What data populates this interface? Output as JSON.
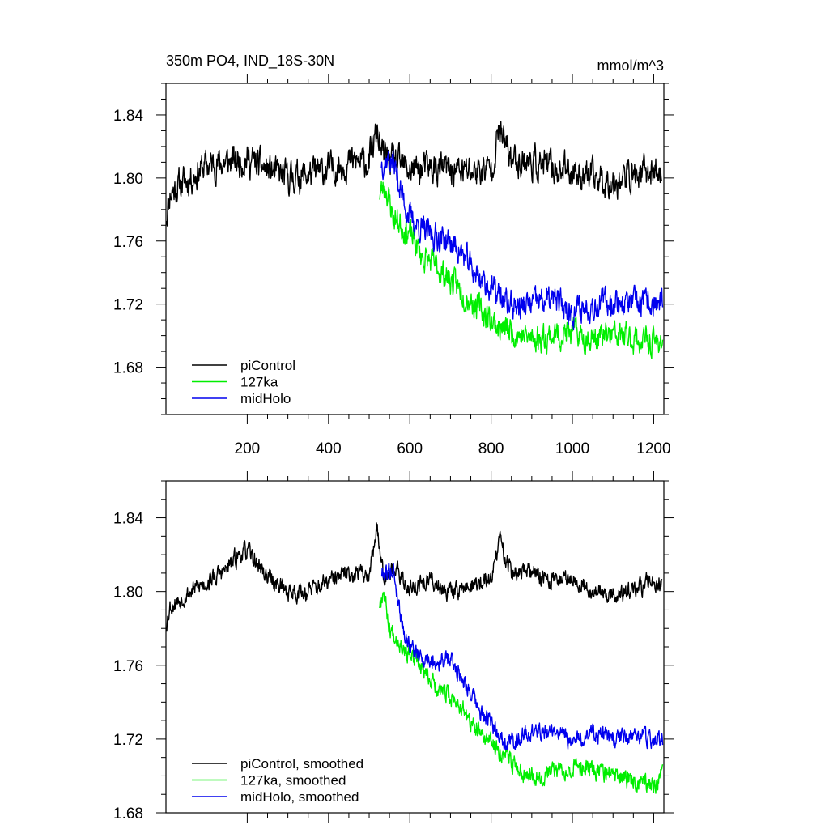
{
  "chart_data": [
    {
      "type": "line",
      "title": "350m PO4, IND_18S-30N",
      "units": "mmol/m^3",
      "xlabel": "",
      "ylabel": "",
      "xlim": [
        0,
        1225
      ],
      "ylim": [
        1.65,
        1.86
      ],
      "xticks": [
        200,
        400,
        600,
        800,
        1000,
        1200
      ],
      "xtick_labels": [
        "200",
        "400",
        "600",
        "800",
        "1000",
        "1200"
      ],
      "yticks": [
        1.68,
        1.72,
        1.76,
        1.8,
        1.84
      ],
      "ytick_labels": [
        "1.68",
        "1.72",
        "1.76",
        "1.80",
        "1.84"
      ],
      "legend_position": "lower-left",
      "series": [
        {
          "name": "piControl",
          "color": "#000000",
          "noise": 0.008,
          "seed": 11,
          "x": [
            0,
            10,
            30,
            60,
            100,
            150,
            200,
            250,
            300,
            350,
            400,
            450,
            500,
            520,
            530,
            560,
            600,
            650,
            700,
            750,
            800,
            820,
            850,
            900,
            950,
            1000,
            1050,
            1100,
            1150,
            1200,
            1220
          ],
          "values": [
            1.775,
            1.79,
            1.795,
            1.8,
            1.808,
            1.81,
            1.812,
            1.805,
            1.8,
            1.802,
            1.805,
            1.81,
            1.81,
            1.83,
            1.815,
            1.81,
            1.805,
            1.806,
            1.805,
            1.804,
            1.806,
            1.83,
            1.812,
            1.81,
            1.806,
            1.805,
            1.8,
            1.798,
            1.802,
            1.804,
            1.802
          ]
        },
        {
          "name": "127ka",
          "color": "#00ee00",
          "noise": 0.007,
          "seed": 23,
          "x": [
            525,
            540,
            560,
            580,
            600,
            630,
            660,
            700,
            740,
            780,
            820,
            860,
            900,
            950,
            1000,
            1050,
            1100,
            1150,
            1200,
            1222
          ],
          "values": [
            1.79,
            1.795,
            1.775,
            1.77,
            1.765,
            1.75,
            1.745,
            1.735,
            1.725,
            1.715,
            1.705,
            1.702,
            1.698,
            1.7,
            1.702,
            1.698,
            1.7,
            1.698,
            1.695,
            1.698
          ]
        },
        {
          "name": "midHolo",
          "color": "#0000ee",
          "noise": 0.007,
          "seed": 37,
          "x": [
            530,
            545,
            560,
            580,
            600,
            640,
            680,
            720,
            760,
            800,
            840,
            880,
            920,
            960,
            1000,
            1050,
            1100,
            1150,
            1200,
            1222
          ],
          "values": [
            1.81,
            1.812,
            1.81,
            1.79,
            1.775,
            1.765,
            1.762,
            1.755,
            1.74,
            1.73,
            1.72,
            1.718,
            1.722,
            1.722,
            1.715,
            1.72,
            1.722,
            1.72,
            1.72,
            1.72
          ]
        }
      ]
    },
    {
      "type": "line",
      "title": "",
      "xlabel": "",
      "ylabel": "",
      "xlim": [
        0,
        1225
      ],
      "ylim": [
        1.68,
        1.86
      ],
      "xticks": [
        200,
        400,
        600,
        800,
        1000,
        1200
      ],
      "xtick_labels": [],
      "yticks": [
        1.68,
        1.72,
        1.76,
        1.8,
        1.84
      ],
      "ytick_labels": [
        "1.68",
        "1.72",
        "1.76",
        "1.80",
        "1.84"
      ],
      "legend_position": "lower-left",
      "series": [
        {
          "name": "piControl, smoothed",
          "color": "#000000",
          "noise": 0.004,
          "seed": 53,
          "x": [
            0,
            10,
            30,
            60,
            100,
            150,
            180,
            200,
            250,
            300,
            350,
            400,
            450,
            500,
            520,
            535,
            560,
            600,
            650,
            700,
            750,
            800,
            820,
            850,
            900,
            950,
            1000,
            1050,
            1100,
            1150,
            1200,
            1220
          ],
          "values": [
            1.782,
            1.792,
            1.795,
            1.8,
            1.805,
            1.812,
            1.82,
            1.822,
            1.808,
            1.8,
            1.8,
            1.805,
            1.81,
            1.81,
            1.835,
            1.81,
            1.812,
            1.802,
            1.806,
            1.8,
            1.803,
            1.806,
            1.828,
            1.81,
            1.81,
            1.806,
            1.808,
            1.8,
            1.798,
            1.8,
            1.806,
            1.805
          ]
        },
        {
          "name": "127ka, smoothed",
          "color": "#00ee00",
          "noise": 0.004,
          "seed": 67,
          "x": [
            525,
            535,
            550,
            570,
            600,
            640,
            680,
            720,
            760,
            800,
            840,
            880,
            920,
            960,
            1000,
            1050,
            1100,
            1150,
            1200,
            1222
          ],
          "values": [
            1.793,
            1.802,
            1.78,
            1.775,
            1.765,
            1.755,
            1.745,
            1.74,
            1.725,
            1.718,
            1.71,
            1.702,
            1.7,
            1.703,
            1.705,
            1.704,
            1.7,
            1.698,
            1.695,
            1.699
          ]
        },
        {
          "name": "midHolo, smoothed",
          "color": "#0000ee",
          "noise": 0.004,
          "seed": 79,
          "x": [
            530,
            545,
            560,
            575,
            590,
            620,
            660,
            700,
            740,
            770,
            800,
            840,
            880,
            920,
            960,
            1000,
            1050,
            1100,
            1150,
            1200,
            1222
          ],
          "values": [
            1.81,
            1.811,
            1.812,
            1.79,
            1.775,
            1.765,
            1.762,
            1.763,
            1.75,
            1.735,
            1.728,
            1.718,
            1.722,
            1.725,
            1.724,
            1.718,
            1.724,
            1.72,
            1.722,
            1.72,
            1.72
          ]
        }
      ]
    }
  ]
}
